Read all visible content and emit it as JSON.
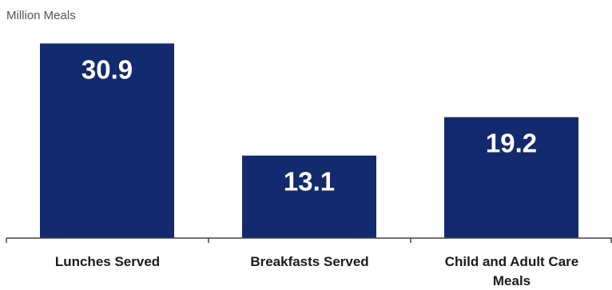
{
  "chart_data": {
    "type": "bar",
    "unit_label": "Million Meals",
    "categories": [
      "Lunches Served",
      "Breakfasts Served",
      "Child and Adult Care Meals"
    ],
    "category_lines": [
      [
        "Lunches Served"
      ],
      [
        "Breakfasts Served"
      ],
      [
        "Child and Adult Care",
        "Meals"
      ]
    ],
    "values": [
      30.9,
      13.1,
      19.2
    ],
    "value_labels": [
      "30.9",
      "13.1",
      "19.2"
    ],
    "ylim": [
      0,
      34.5
    ],
    "grid": false,
    "legend": "none",
    "bar_color": "#132a6e",
    "label_color": "#ffffff"
  }
}
